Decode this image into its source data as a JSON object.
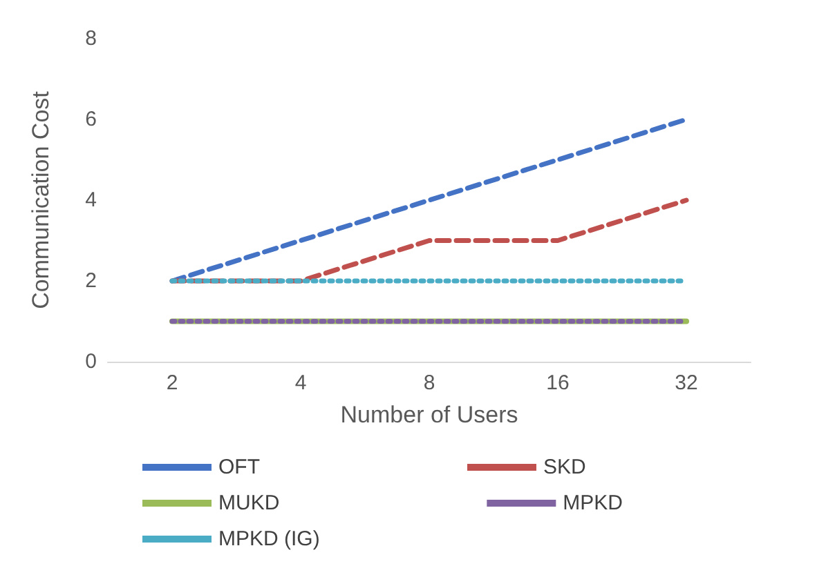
{
  "chart_data": {
    "type": "line",
    "xlabel": "Number of Users",
    "ylabel": "Communication Cost",
    "categories": [
      "2",
      "4",
      "8",
      "16",
      "32"
    ],
    "series": [
      {
        "name": "OFT",
        "color": "#4472c4",
        "line_style": "dashed",
        "values": [
          2,
          3,
          4,
          5,
          6
        ]
      },
      {
        "name": "SKD",
        "color": "#c0504d",
        "line_style": "dashed",
        "values": [
          2,
          2,
          3,
          3,
          4
        ]
      },
      {
        "name": "MUKD",
        "color": "#9bbb59",
        "line_style": "solid",
        "values": [
          1,
          1,
          1,
          1,
          1
        ]
      },
      {
        "name": "MPKD",
        "color": "#8064a2",
        "line_style": "dotted",
        "values": [
          1,
          1,
          1,
          1,
          1
        ]
      },
      {
        "name": "MPKD (IG)",
        "color": "#4bacc6",
        "line_style": "dotted",
        "values": [
          2,
          2,
          2,
          2,
          2
        ]
      }
    ],
    "ylim": [
      0,
      8
    ],
    "yticks": [
      0,
      2,
      4,
      6,
      8
    ],
    "grid": false,
    "legend": "bottom",
    "marker": "none"
  }
}
